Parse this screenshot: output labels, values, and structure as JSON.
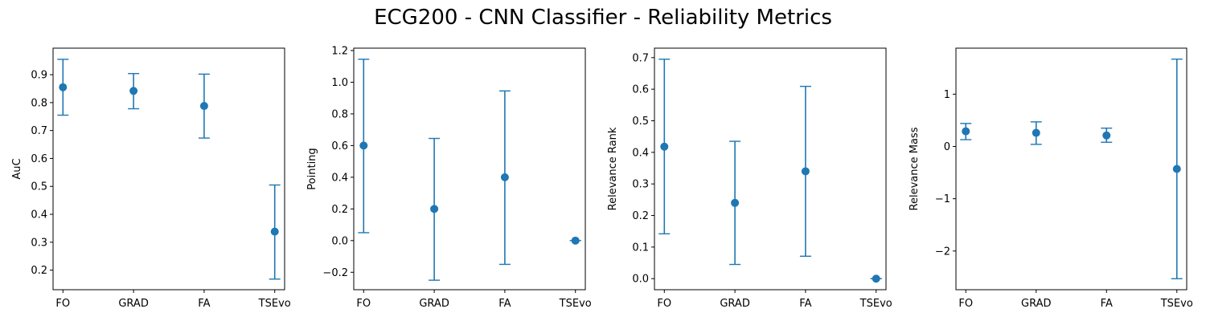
{
  "figure": {
    "title": "ECG200 - CNN Classifier - Reliability Metrics"
  },
  "style": {
    "series_color": "#1f77b4",
    "axes_color": "#000000",
    "background": "#ffffff"
  },
  "chart_data": [
    {
      "type": "scatter",
      "error_bars": true,
      "ylabel": "AuC",
      "categories": [
        "FO",
        "GRAD",
        "FA",
        "TSEvo"
      ],
      "values": [
        0.855,
        0.842,
        0.788,
        0.338
      ],
      "error_low": [
        0.755,
        0.778,
        0.673,
        0.168
      ],
      "error_high": [
        0.955,
        0.904,
        0.902,
        0.505
      ],
      "ylim": [
        0.13,
        0.995
      ],
      "yticks": [
        0.2,
        0.3,
        0.4,
        0.5,
        0.6,
        0.7,
        0.8,
        0.9
      ],
      "yticklabels": [
        "0.2",
        "0.3",
        "0.4",
        "0.5",
        "0.6",
        "0.7",
        "0.8",
        "0.9"
      ]
    },
    {
      "type": "scatter",
      "error_bars": true,
      "ylabel": "Pointing",
      "categories": [
        "FO",
        "GRAD",
        "FA",
        "TSEvo"
      ],
      "values": [
        0.6,
        0.2,
        0.4,
        0.0
      ],
      "error_low": [
        0.05,
        -0.25,
        -0.15,
        0.0
      ],
      "error_high": [
        1.145,
        0.645,
        0.945,
        0.0
      ],
      "ylim": [
        -0.31,
        1.215
      ],
      "yticks": [
        -0.2,
        0.0,
        0.2,
        0.4,
        0.6,
        0.8,
        1.0,
        1.2
      ],
      "yticklabels": [
        "−0.2",
        "0.0",
        "0.2",
        "0.4",
        "0.6",
        "0.8",
        "1.0",
        "1.2"
      ]
    },
    {
      "type": "scatter",
      "error_bars": true,
      "ylabel": "Relevance Rank",
      "categories": [
        "FO",
        "GRAD",
        "FA",
        "TSEvo"
      ],
      "values": [
        0.418,
        0.24,
        0.34,
        0.0
      ],
      "error_low": [
        0.142,
        0.045,
        0.071,
        0.0
      ],
      "error_high": [
        0.695,
        0.435,
        0.609,
        0.0
      ],
      "ylim": [
        -0.035,
        0.73
      ],
      "yticks": [
        0.0,
        0.1,
        0.2,
        0.3,
        0.4,
        0.5,
        0.6,
        0.7
      ],
      "yticklabels": [
        "0.0",
        "0.1",
        "0.2",
        "0.3",
        "0.4",
        "0.5",
        "0.6",
        "0.7"
      ]
    },
    {
      "type": "scatter",
      "error_bars": true,
      "ylabel": "Relevance Mass",
      "categories": [
        "FO",
        "GRAD",
        "FA",
        "TSEvo"
      ],
      "values": [
        0.29,
        0.26,
        0.21,
        -0.43
      ],
      "error_low": [
        0.13,
        0.04,
        0.08,
        -2.53
      ],
      "error_high": [
        0.44,
        0.47,
        0.35,
        1.67
      ],
      "ylim": [
        -2.74,
        1.88
      ],
      "yticks": [
        -2,
        -1,
        0,
        1
      ],
      "yticklabels": [
        "−2",
        "−1",
        "0",
        "1"
      ]
    }
  ]
}
